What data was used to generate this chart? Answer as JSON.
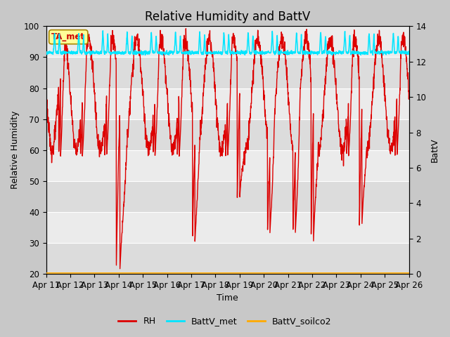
{
  "title": "Relative Humidity and BattV",
  "xlabel": "Time",
  "ylabel_left": "Relative Humidity",
  "ylabel_right": "BattV",
  "xlim": [
    0,
    15
  ],
  "ylim_left": [
    20,
    100
  ],
  "ylim_right": [
    0,
    14
  ],
  "x_tick_labels": [
    "Apr 11",
    "Apr 12",
    "Apr 13",
    "Apr 14",
    "Apr 15",
    "Apr 16",
    "Apr 17",
    "Apr 18",
    "Apr 19",
    "Apr 20",
    "Apr 21",
    "Apr 22",
    "Apr 23",
    "Apr 24",
    "Apr 25",
    "Apr 26"
  ],
  "rh_color": "#dd0000",
  "batt_met_color": "#00e5ff",
  "batt_soilco2_color": "#ffaa00",
  "annotation_text": "TA_met",
  "annotation_color": "#cc0000",
  "annotation_bg": "#ffff99",
  "band_colors": [
    "#e8e8e8",
    "#d0d0d0"
  ],
  "title_fontsize": 12,
  "label_fontsize": 9,
  "tick_fontsize": 8.5
}
